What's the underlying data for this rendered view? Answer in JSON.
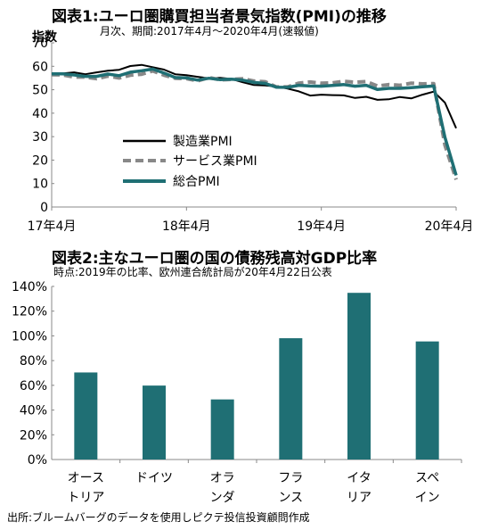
{
  "chart_data": [
    {
      "type": "line",
      "title": "図表1:ユーロ圏購買担当者景気指数(PMI)の推移",
      "subtitle": "月次、期間:2017年4月〜2020年4月(速報値)",
      "ylabel": "指数",
      "ylim": [
        0,
        70
      ],
      "yticks": [
        0,
        10,
        20,
        30,
        40,
        50,
        60,
        70
      ],
      "xtick_labels": [
        "17年4月",
        "18年4月",
        "19年4月",
        "20年4月"
      ],
      "x": [
        "2017-04",
        "2017-05",
        "2017-06",
        "2017-07",
        "2017-08",
        "2017-09",
        "2017-10",
        "2017-11",
        "2017-12",
        "2018-01",
        "2018-02",
        "2018-03",
        "2018-04",
        "2018-05",
        "2018-06",
        "2018-07",
        "2018-08",
        "2018-09",
        "2018-10",
        "2018-11",
        "2018-12",
        "2019-01",
        "2019-02",
        "2019-03",
        "2019-04",
        "2019-05",
        "2019-06",
        "2019-07",
        "2019-08",
        "2019-09",
        "2019-10",
        "2019-11",
        "2019-12",
        "2020-01",
        "2020-02",
        "2020-03",
        "2020-04"
      ],
      "legend_position": "center-left",
      "series": [
        {
          "name": "製造業PMI",
          "color": "#000000",
          "style": "solid",
          "values": [
            56.7,
            57.0,
            57.4,
            56.6,
            57.4,
            58.1,
            58.5,
            60.1,
            60.6,
            59.6,
            58.6,
            56.6,
            56.2,
            55.5,
            54.9,
            55.1,
            54.6,
            53.2,
            52.0,
            51.8,
            51.4,
            50.5,
            49.3,
            47.5,
            47.9,
            47.7,
            47.6,
            46.5,
            47.0,
            45.7,
            45.9,
            46.9,
            46.3,
            47.9,
            49.2,
            44.5,
            33.6
          ]
        },
        {
          "name": "サービス業PMI",
          "color": "#888888",
          "style": "dashed",
          "values": [
            56.4,
            56.3,
            55.4,
            55.4,
            54.7,
            55.8,
            55.0,
            56.2,
            56.6,
            58.0,
            56.2,
            54.9,
            54.7,
            53.8,
            55.2,
            54.2,
            54.4,
            54.7,
            53.7,
            53.4,
            51.2,
            51.2,
            52.8,
            53.3,
            52.8,
            52.9,
            53.6,
            53.2,
            53.5,
            51.6,
            52.2,
            51.9,
            52.8,
            52.5,
            52.6,
            26.4,
            11.7
          ]
        },
        {
          "name": "総合PMI",
          "color": "#1f6f74",
          "style": "solid",
          "values": [
            56.8,
            56.8,
            56.3,
            55.7,
            55.7,
            56.7,
            56.0,
            57.5,
            58.1,
            58.8,
            57.1,
            55.2,
            55.1,
            54.1,
            54.9,
            54.3,
            54.5,
            54.1,
            53.1,
            52.7,
            51.1,
            51.0,
            51.9,
            51.6,
            51.5,
            51.8,
            52.2,
            51.5,
            51.9,
            50.1,
            50.6,
            50.6,
            50.9,
            51.3,
            51.6,
            29.7,
            13.5
          ]
        }
      ]
    },
    {
      "type": "bar",
      "title": "図表2:主なユーロ圏の国の債務残高対GDP比率",
      "subtitle": "時点:2019年の比率、欧州連合統計局が20年4月22日公表",
      "categories": [
        [
          "オース",
          "トリア"
        ],
        [
          "ドイツ"
        ],
        [
          "オラ",
          "ンダ"
        ],
        [
          "フラ",
          "ンス"
        ],
        [
          "イタ",
          "リア"
        ],
        [
          "スペ",
          "イン"
        ]
      ],
      "values": [
        70.4,
        59.8,
        48.6,
        98.1,
        134.8,
        95.5
      ],
      "ylim": [
        0,
        140
      ],
      "yticks": [
        0,
        20,
        40,
        60,
        80,
        100,
        120,
        140
      ],
      "ytick_suffix": "%",
      "bar_color": "#1f6f74"
    }
  ],
  "source_note": "出所:ブルームバーグのデータを使用しピクテ投信投資顧問作成"
}
